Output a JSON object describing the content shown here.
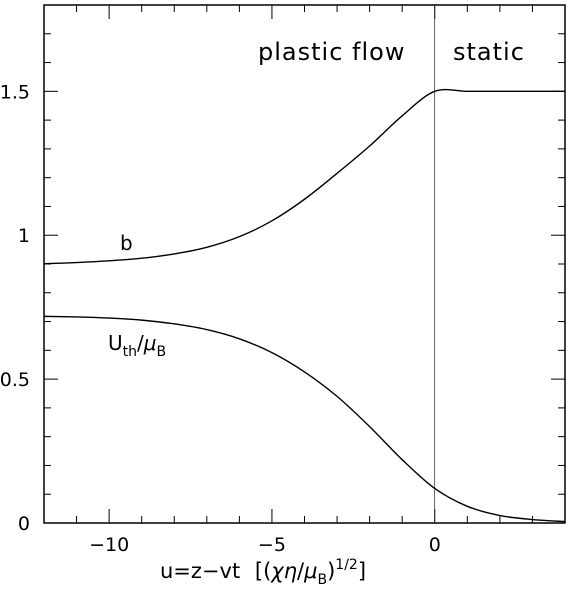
{
  "chart_data": {
    "type": "line",
    "xlabel": "u=z−vt  [(χη/μB)1/2]",
    "xlabel_parts": {
      "main": "u=z−vt",
      "bracket_open": "[(",
      "chi_eta": "χη",
      "slash": "/",
      "mu": "μ",
      "mu_sub": "B",
      "close_paren": ")",
      "exponent": "1/2",
      "bracket_close": "]"
    },
    "ylabel": "",
    "xlim": [
      -12,
      4
    ],
    "ylim": [
      0,
      1.8
    ],
    "xticks": [
      -10,
      -5,
      0
    ],
    "xtick_labels": [
      "−10",
      "−5",
      "0"
    ],
    "yticks": [
      0,
      0.5,
      1,
      1.5
    ],
    "ytick_labels": [
      "0",
      "0.5",
      "1",
      "1.5"
    ],
    "grid": false,
    "vertical_line_x": 0,
    "regions": [
      {
        "label": "plastic flow",
        "side": "left of x=0"
      },
      {
        "label": "static",
        "side": "right of x=0"
      }
    ],
    "series": [
      {
        "name": "b",
        "label_parts": {
          "main": "b"
        },
        "x": [
          -12,
          -11,
          -10,
          -9,
          -8,
          -7,
          -6,
          -5,
          -4,
          -3,
          -2,
          -1,
          0,
          1,
          2,
          3,
          4
        ],
        "y": [
          0.901,
          0.905,
          0.911,
          0.92,
          0.935,
          0.958,
          0.995,
          1.05,
          1.125,
          1.215,
          1.31,
          1.415,
          1.5,
          1.5,
          1.5,
          1.5,
          1.5
        ]
      },
      {
        "name": "Uth/μB",
        "label_parts": {
          "main": "U",
          "sub1": "th",
          "slash": "/",
          "mu": "μ",
          "sub2": "B"
        },
        "x": [
          -12,
          -11,
          -10,
          -9,
          -8,
          -7,
          -6,
          -5,
          -4,
          -3,
          -2,
          -1,
          0,
          1,
          2,
          3,
          4
        ],
        "y": [
          0.718,
          0.716,
          0.712,
          0.705,
          0.692,
          0.672,
          0.64,
          0.592,
          0.525,
          0.44,
          0.335,
          0.22,
          0.12,
          0.058,
          0.026,
          0.012,
          0.005
        ]
      }
    ]
  }
}
